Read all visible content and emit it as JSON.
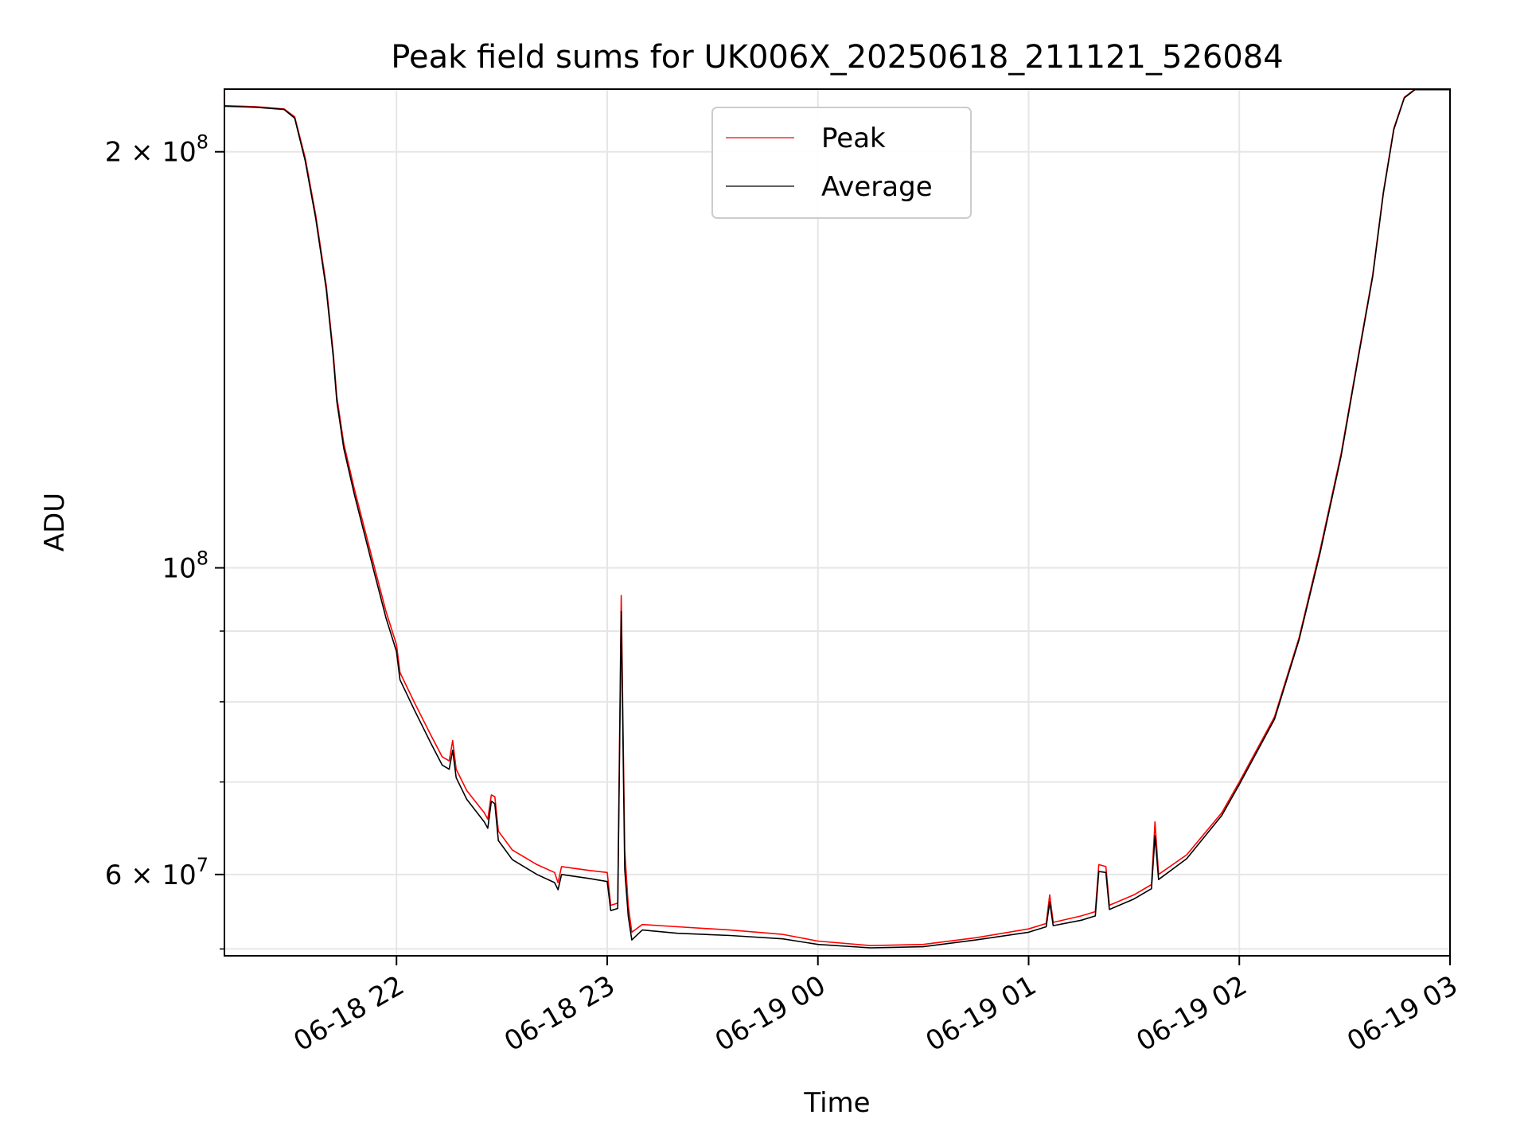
{
  "chart_data": {
    "type": "line",
    "title": "Peak field sums for UK006X_20250618_211121_526084",
    "xlabel": "Time",
    "ylabel": "ADU",
    "y_scale": "log",
    "ylim": [
      52400000,
      222000000
    ],
    "xlim": [
      "2025-06-18 21:11",
      "2025-06-19 03:00"
    ],
    "grid": true,
    "legend_position": "upper center",
    "x_ticks": [
      {
        "x": "2025-06-18 22:00",
        "label": "06-18 22"
      },
      {
        "x": "2025-06-18 23:00",
        "label": "06-18 23"
      },
      {
        "x": "2025-06-19 00:00",
        "label": "06-19 00"
      },
      {
        "x": "2025-06-19 01:00",
        "label": "06-19 01"
      },
      {
        "x": "2025-06-19 02:00",
        "label": "06-19 02"
      },
      {
        "x": "2025-06-19 03:00",
        "label": "06-19 03"
      }
    ],
    "y_major_ticks": [
      {
        "y": 60000000,
        "base": "6",
        "exp": "7"
      },
      {
        "y": 100000000,
        "base": "",
        "exp": "8"
      },
      {
        "y": 200000000,
        "base": "2",
        "exp": "8"
      }
    ],
    "y_minor_ticks": [
      53000000,
      70000000,
      80000000,
      90000000
    ],
    "series": [
      {
        "name": "Peak",
        "color": "#ff0000",
        "points": [
          [
            "2025-06-18 21:11",
            216000000
          ],
          [
            "2025-06-18 21:20",
            215600000
          ],
          [
            "2025-06-18 21:28",
            214800000
          ],
          [
            "2025-06-18 21:31",
            212000000
          ],
          [
            "2025-06-18 21:34",
            198000000
          ],
          [
            "2025-06-18 21:37",
            180000000
          ],
          [
            "2025-06-18 21:40",
            160000000
          ],
          [
            "2025-06-18 21:42",
            143000000
          ],
          [
            "2025-06-18 21:43",
            133000000
          ],
          [
            "2025-06-18 21:45",
            123000000
          ],
          [
            "2025-06-18 21:48",
            114000000
          ],
          [
            "2025-06-18 21:51",
            106500000
          ],
          [
            "2025-06-18 21:54",
            99500000
          ],
          [
            "2025-06-18 21:57",
            93000000
          ],
          [
            "2025-06-18 22:00",
            88000000
          ],
          [
            "2025-06-18 22:01",
            84000000
          ],
          [
            "2025-06-18 22:05",
            80000000
          ],
          [
            "2025-06-18 22:10",
            75500000
          ],
          [
            "2025-06-18 22:13",
            73000000
          ],
          [
            "2025-06-18 22:15",
            72500000
          ],
          [
            "2025-06-18 22:16",
            75000000
          ],
          [
            "2025-06-18 22:17",
            71500000
          ],
          [
            "2025-06-18 22:20",
            69000000
          ],
          [
            "2025-06-18 22:25",
            66500000
          ],
          [
            "2025-06-18 22:26",
            65800000
          ],
          [
            "2025-06-18 22:27",
            68500000
          ],
          [
            "2025-06-18 22:28",
            68300000
          ],
          [
            "2025-06-18 22:29",
            64500000
          ],
          [
            "2025-06-18 22:33",
            62500000
          ],
          [
            "2025-06-18 22:40",
            61000000
          ],
          [
            "2025-06-18 22:45",
            60200000
          ],
          [
            "2025-06-18 22:46",
            59200000
          ],
          [
            "2025-06-18 22:47",
            60800000
          ],
          [
            "2025-06-18 22:55",
            60400000
          ],
          [
            "2025-06-18 23:00",
            60200000
          ],
          [
            "2025-06-18 23:01",
            57000000
          ],
          [
            "2025-06-18 23:03",
            57200000
          ],
          [
            "2025-06-18 23:04",
            95500000
          ],
          [
            "2025-06-18 23:05",
            62500000
          ],
          [
            "2025-06-18 23:06",
            57000000
          ],
          [
            "2025-06-18 23:07",
            54500000
          ],
          [
            "2025-06-18 23:10",
            55200000
          ],
          [
            "2025-06-18 23:20",
            55000000
          ],
          [
            "2025-06-18 23:35",
            54700000
          ],
          [
            "2025-06-18 23:50",
            54300000
          ],
          [
            "2025-06-19 00:00",
            53700000
          ],
          [
            "2025-06-19 00:15",
            53300000
          ],
          [
            "2025-06-19 00:30",
            53400000
          ],
          [
            "2025-06-19 00:45",
            54000000
          ],
          [
            "2025-06-19 01:00",
            54800000
          ],
          [
            "2025-06-19 01:05",
            55300000
          ],
          [
            "2025-06-19 01:06",
            58000000
          ],
          [
            "2025-06-19 01:07",
            55400000
          ],
          [
            "2025-06-19 01:15",
            56000000
          ],
          [
            "2025-06-19 01:19",
            56400000
          ],
          [
            "2025-06-19 01:20",
            61000000
          ],
          [
            "2025-06-19 01:22",
            60800000
          ],
          [
            "2025-06-19 01:23",
            57000000
          ],
          [
            "2025-06-19 01:30",
            58000000
          ],
          [
            "2025-06-19 01:35",
            59000000
          ],
          [
            "2025-06-19 01:36",
            65500000
          ],
          [
            "2025-06-19 01:37",
            60000000
          ],
          [
            "2025-06-19 01:45",
            62000000
          ],
          [
            "2025-06-19 01:55",
            66500000
          ],
          [
            "2025-06-19 02:00",
            70000000
          ],
          [
            "2025-06-19 02:10",
            78000000
          ],
          [
            "2025-06-19 02:17",
            89000000
          ],
          [
            "2025-06-19 02:23",
            103000000
          ],
          [
            "2025-06-19 02:29",
            121000000
          ],
          [
            "2025-06-19 02:34",
            143000000
          ],
          [
            "2025-06-19 02:38",
            163000000
          ],
          [
            "2025-06-19 02:41",
            187000000
          ],
          [
            "2025-06-19 02:44",
            208000000
          ],
          [
            "2025-06-19 02:47",
            219000000
          ],
          [
            "2025-06-19 02:50",
            222000000
          ],
          [
            "2025-06-19 03:00",
            222000000
          ]
        ]
      },
      {
        "name": "Average",
        "color": "#000000",
        "points": [
          [
            "2025-06-18 21:11",
            215800000
          ],
          [
            "2025-06-18 21:20",
            215400000
          ],
          [
            "2025-06-18 21:28",
            214600000
          ],
          [
            "2025-06-18 21:31",
            211500000
          ],
          [
            "2025-06-18 21:34",
            197000000
          ],
          [
            "2025-06-18 21:37",
            179000000
          ],
          [
            "2025-06-18 21:40",
            159000000
          ],
          [
            "2025-06-18 21:42",
            142000000
          ],
          [
            "2025-06-18 21:43",
            132000000
          ],
          [
            "2025-06-18 21:45",
            122000000
          ],
          [
            "2025-06-18 21:48",
            113000000
          ],
          [
            "2025-06-18 21:51",
            105500000
          ],
          [
            "2025-06-18 21:54",
            98500000
          ],
          [
            "2025-06-18 21:57",
            92000000
          ],
          [
            "2025-06-18 22:00",
            87000000
          ],
          [
            "2025-06-18 22:01",
            83000000
          ],
          [
            "2025-06-18 22:05",
            79000000
          ],
          [
            "2025-06-18 22:10",
            74500000
          ],
          [
            "2025-06-18 22:13",
            72000000
          ],
          [
            "2025-06-18 22:15",
            71500000
          ],
          [
            "2025-06-18 22:16",
            73800000
          ],
          [
            "2025-06-18 22:17",
            70500000
          ],
          [
            "2025-06-18 22:20",
            68000000
          ],
          [
            "2025-06-18 22:25",
            65500000
          ],
          [
            "2025-06-18 22:26",
            64800000
          ],
          [
            "2025-06-18 22:27",
            67800000
          ],
          [
            "2025-06-18 22:28",
            67500000
          ],
          [
            "2025-06-18 22:29",
            63500000
          ],
          [
            "2025-06-18 22:33",
            61500000
          ],
          [
            "2025-06-18 22:40",
            60000000
          ],
          [
            "2025-06-18 22:45",
            59200000
          ],
          [
            "2025-06-18 22:46",
            58500000
          ],
          [
            "2025-06-18 22:47",
            60000000
          ],
          [
            "2025-06-18 22:55",
            59600000
          ],
          [
            "2025-06-18 23:00",
            59300000
          ],
          [
            "2025-06-18 23:01",
            56500000
          ],
          [
            "2025-06-18 23:03",
            56700000
          ],
          [
            "2025-06-18 23:04",
            93000000
          ],
          [
            "2025-06-18 23:05",
            60500000
          ],
          [
            "2025-06-18 23:06",
            56000000
          ],
          [
            "2025-06-18 23:07",
            53800000
          ],
          [
            "2025-06-18 23:10",
            54700000
          ],
          [
            "2025-06-18 23:20",
            54400000
          ],
          [
            "2025-06-18 23:35",
            54200000
          ],
          [
            "2025-06-18 23:50",
            53900000
          ],
          [
            "2025-06-19 00:00",
            53400000
          ],
          [
            "2025-06-19 00:15",
            53100000
          ],
          [
            "2025-06-19 00:30",
            53200000
          ],
          [
            "2025-06-19 00:45",
            53800000
          ],
          [
            "2025-06-19 01:00",
            54500000
          ],
          [
            "2025-06-19 01:05",
            55000000
          ],
          [
            "2025-06-19 01:06",
            57300000
          ],
          [
            "2025-06-19 01:07",
            55100000
          ],
          [
            "2025-06-19 01:15",
            55600000
          ],
          [
            "2025-06-19 01:19",
            56000000
          ],
          [
            "2025-06-19 01:20",
            60300000
          ],
          [
            "2025-06-19 01:22",
            60200000
          ],
          [
            "2025-06-19 01:23",
            56600000
          ],
          [
            "2025-06-19 01:30",
            57600000
          ],
          [
            "2025-06-19 01:35",
            58600000
          ],
          [
            "2025-06-19 01:36",
            64000000
          ],
          [
            "2025-06-19 01:37",
            59500000
          ],
          [
            "2025-06-19 01:45",
            61600000
          ],
          [
            "2025-06-19 01:55",
            66200000
          ],
          [
            "2025-06-19 02:00",
            69700000
          ],
          [
            "2025-06-19 02:10",
            77700000
          ],
          [
            "2025-06-19 02:17",
            88700000
          ],
          [
            "2025-06-19 02:23",
            102500000
          ],
          [
            "2025-06-19 02:29",
            120500000
          ],
          [
            "2025-06-19 02:34",
            142500000
          ],
          [
            "2025-06-19 02:38",
            162500000
          ],
          [
            "2025-06-19 02:41",
            186500000
          ],
          [
            "2025-06-19 02:44",
            207500000
          ],
          [
            "2025-06-19 02:47",
            218800000
          ],
          [
            "2025-06-19 02:50",
            221800000
          ],
          [
            "2025-06-19 03:00",
            221800000
          ]
        ]
      }
    ]
  }
}
